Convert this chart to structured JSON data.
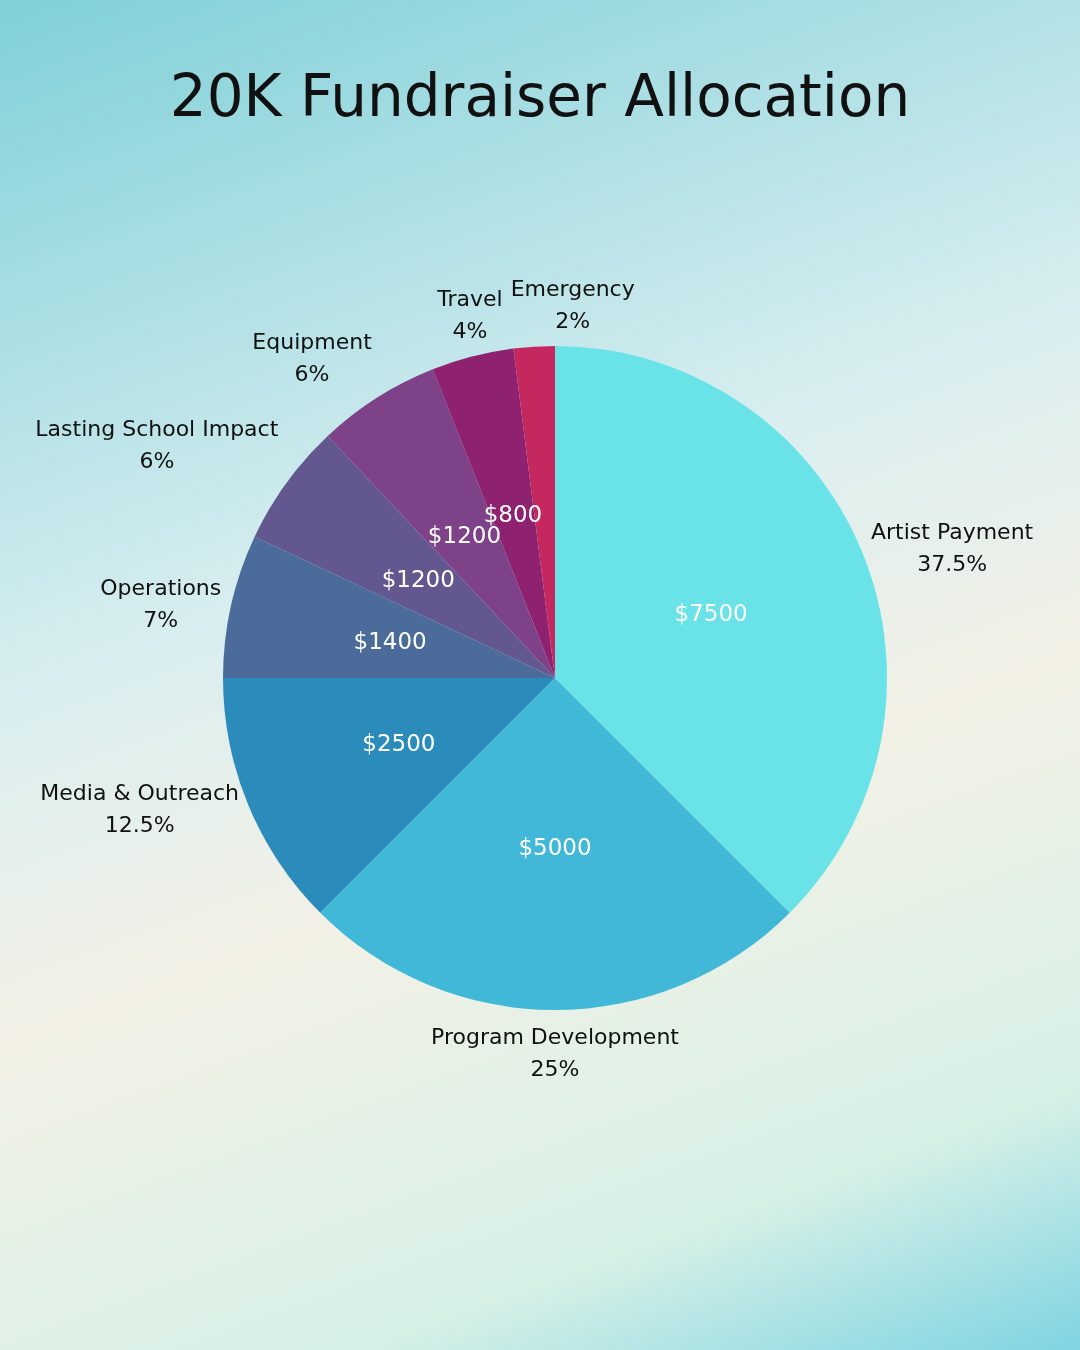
{
  "chart_data": {
    "type": "pie",
    "title": "20K Fundraiser Allocation",
    "categories": [
      "Artist Payment",
      "Program Development",
      "Media & Outreach",
      "Operations",
      "Lasting School Impact",
      "Equipment",
      "Travel",
      "Emergency"
    ],
    "values": [
      7500,
      5000,
      2500,
      1400,
      1200,
      1200,
      800,
      400
    ],
    "value_labels": [
      "$7500",
      "$5000",
      "$2500",
      "$1400",
      "$1200",
      "$1200",
      "$800",
      null
    ],
    "colors": [
      "#6ae3e8",
      "#42b8d8",
      "#2b8cbb",
      "#4b6b9a",
      "#62578e",
      "#7e4289",
      "#8e2170",
      "#c4285e"
    ],
    "annotations": [
      {
        "text": "37.5%",
        "x": "Artist Payment"
      },
      {
        "text": "25%",
        "x": "Program Development"
      },
      {
        "text": "12.5%",
        "x": "Media & Outreach"
      },
      {
        "text": "7%",
        "x": "Operations"
      },
      {
        "text": "6%",
        "x": "Lasting School Impact"
      },
      {
        "text": "6%",
        "x": "Equipment"
      },
      {
        "text": "4%",
        "x": "Travel"
      },
      {
        "text": "2%",
        "x": "Emergency"
      }
    ],
    "legend": false
  }
}
